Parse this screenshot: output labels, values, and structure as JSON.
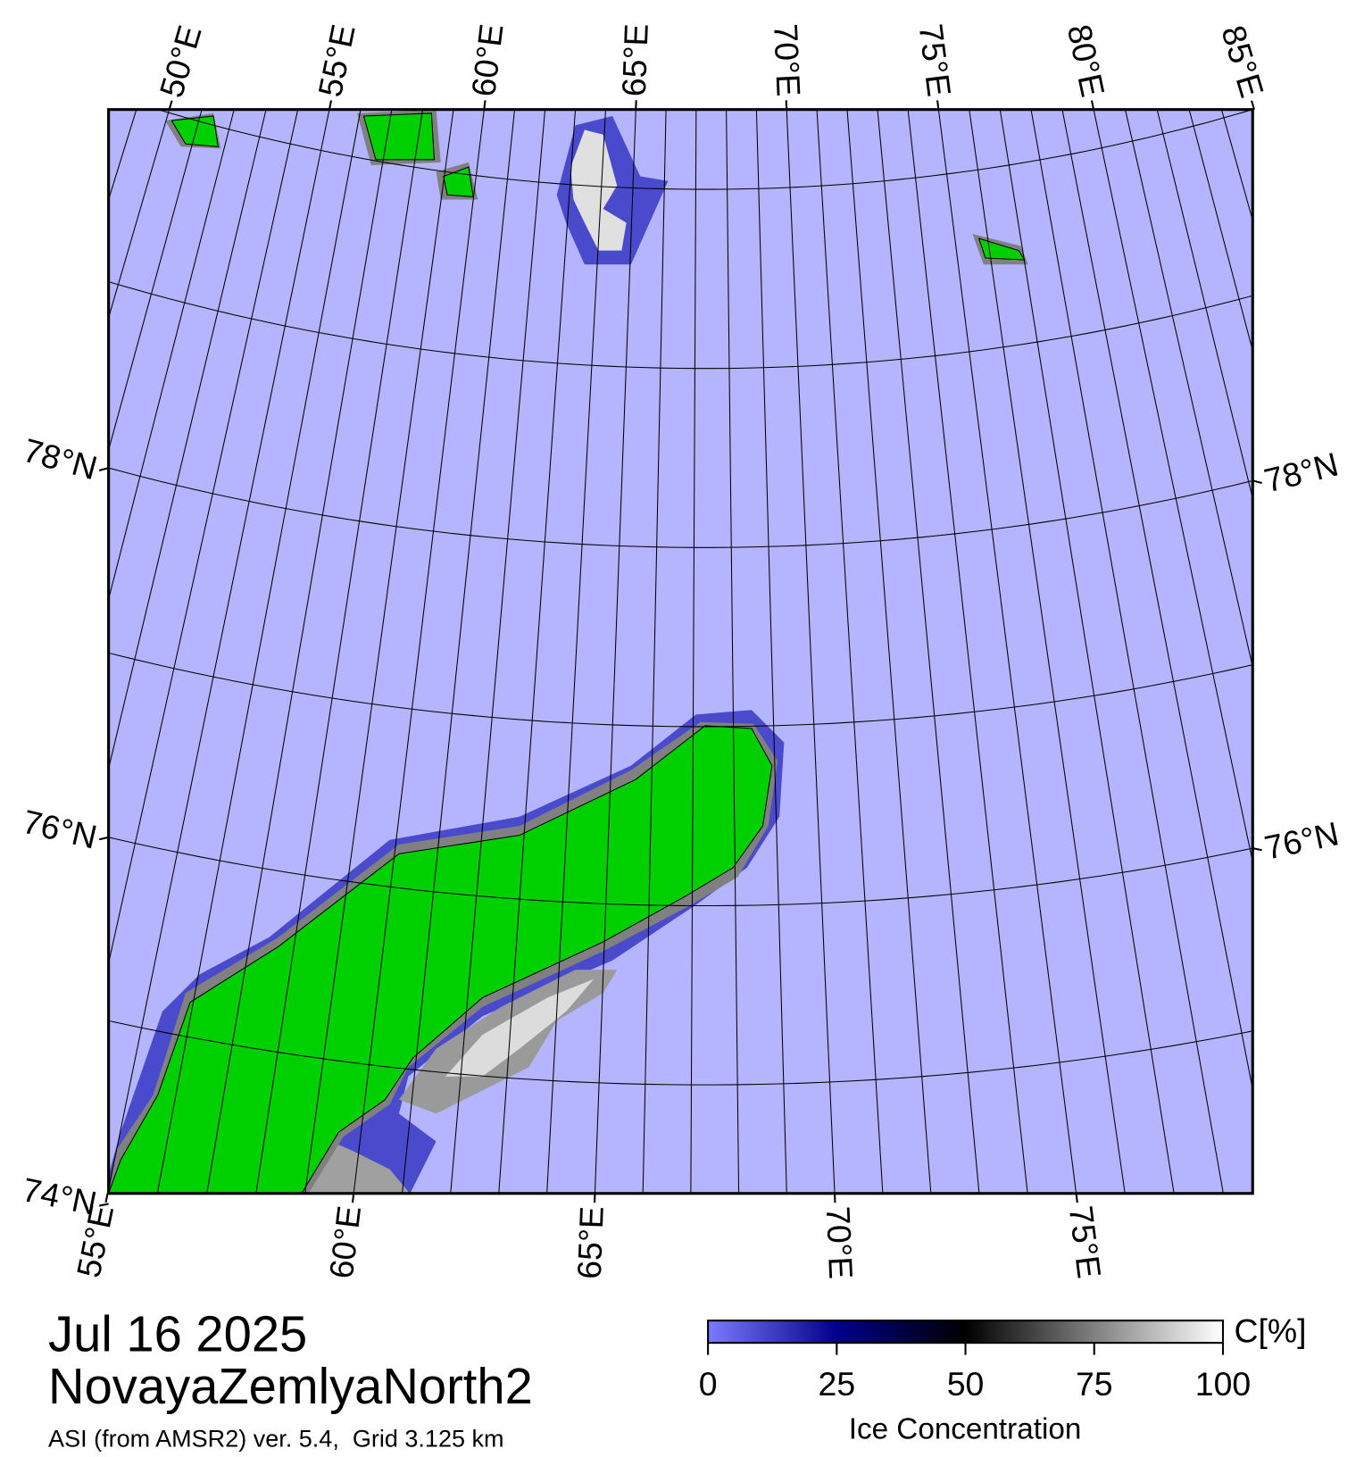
{
  "map": {
    "date": "Jul 16 2025",
    "title": "NovayaZemlyaNorth2",
    "source": "ASI (from AMSR2) ver. 5.4,  Grid 3.125 km",
    "top_lon_ticks": [
      {
        "value": 50,
        "label": "50°E"
      },
      {
        "value": 55,
        "label": "55°E"
      },
      {
        "value": 60,
        "label": "60°E"
      },
      {
        "value": 65,
        "label": "65°E"
      },
      {
        "value": 70,
        "label": "70°E"
      },
      {
        "value": 75,
        "label": "75°E"
      },
      {
        "value": 80,
        "label": "80°E"
      },
      {
        "value": 85,
        "label": "85°E"
      }
    ],
    "bottom_lon_ticks": [
      {
        "value": 55,
        "label": "55°E"
      },
      {
        "value": 60,
        "label": "60°E"
      },
      {
        "value": 65,
        "label": "65°E"
      },
      {
        "value": 70,
        "label": "70°E"
      },
      {
        "value": 75,
        "label": "75°E"
      }
    ],
    "left_lat_ticks": [
      {
        "value": 78,
        "label": "78°N"
      },
      {
        "value": 76,
        "label": "76°N"
      },
      {
        "value": 74,
        "label": "74°N"
      }
    ],
    "right_lat_ticks": [
      {
        "value": 78,
        "label": "78°N"
      },
      {
        "value": 76,
        "label": "76°N"
      }
    ]
  },
  "colorbar": {
    "label": "Ice Concentration",
    "unit": "C[%]",
    "lim": [
      0,
      100
    ],
    "ticks": [
      0,
      25,
      50,
      75,
      100
    ],
    "colors": [
      "#7b7bff",
      "#00008b",
      "#000000",
      "#808080",
      "#ffffff"
    ]
  }
}
